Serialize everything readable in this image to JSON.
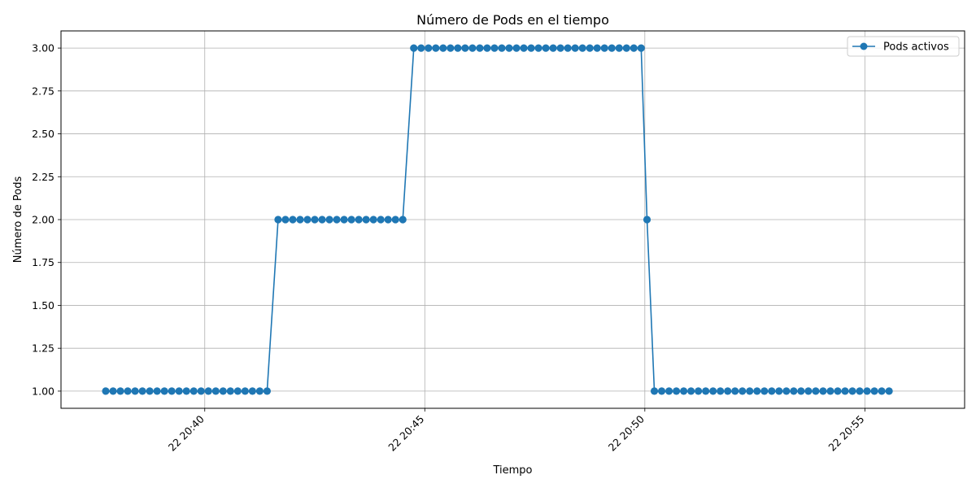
{
  "chart_data": {
    "type": "line",
    "title": "Número de Pods en el tiempo",
    "xlabel": "Tiempo",
    "ylabel": "Número de Pods",
    "x_ticks": [
      {
        "time": "20:40",
        "label": "22 20:40"
      },
      {
        "time": "20:45",
        "label": "22 20:45"
      },
      {
        "time": "20:50",
        "label": "22 20:50"
      },
      {
        "time": "20:55",
        "label": "22 20:55"
      }
    ],
    "y_ticks": [
      "1.00",
      "1.25",
      "1.50",
      "1.75",
      "2.00",
      "2.25",
      "2.50",
      "2.75",
      "3.00"
    ],
    "ylim": [
      0.9,
      3.1
    ],
    "xlim": [
      "20:36:44",
      "20:57:16"
    ],
    "grid": true,
    "legend_position": "top-right",
    "series": [
      {
        "name": "Pods activos",
        "color": "#1f77b4",
        "marker": "circle",
        "points": [
          [
            "20:37:45",
            1
          ],
          [
            "20:37:55",
            1
          ],
          [
            "20:38:05",
            1
          ],
          [
            "20:38:15",
            1
          ],
          [
            "20:38:25",
            1
          ],
          [
            "20:38:35",
            1
          ],
          [
            "20:38:45",
            1
          ],
          [
            "20:38:55",
            1
          ],
          [
            "20:39:05",
            1
          ],
          [
            "20:39:15",
            1
          ],
          [
            "20:39:25",
            1
          ],
          [
            "20:39:35",
            1
          ],
          [
            "20:39:45",
            1
          ],
          [
            "20:39:55",
            1
          ],
          [
            "20:40:05",
            1
          ],
          [
            "20:40:15",
            1
          ],
          [
            "20:40:25",
            1
          ],
          [
            "20:40:35",
            1
          ],
          [
            "20:40:45",
            1
          ],
          [
            "20:40:55",
            1
          ],
          [
            "20:41:05",
            1
          ],
          [
            "20:41:15",
            1
          ],
          [
            "20:41:25",
            1
          ],
          [
            "20:41:40",
            2
          ],
          [
            "20:41:50",
            2
          ],
          [
            "20:42:00",
            2
          ],
          [
            "20:42:10",
            2
          ],
          [
            "20:42:20",
            2
          ],
          [
            "20:42:30",
            2
          ],
          [
            "20:42:40",
            2
          ],
          [
            "20:42:50",
            2
          ],
          [
            "20:43:00",
            2
          ],
          [
            "20:43:10",
            2
          ],
          [
            "20:43:20",
            2
          ],
          [
            "20:43:30",
            2
          ],
          [
            "20:43:40",
            2
          ],
          [
            "20:43:50",
            2
          ],
          [
            "20:44:00",
            2
          ],
          [
            "20:44:10",
            2
          ],
          [
            "20:44:20",
            2
          ],
          [
            "20:44:30",
            2
          ],
          [
            "20:44:45",
            3
          ],
          [
            "20:44:55",
            3
          ],
          [
            "20:45:05",
            3
          ],
          [
            "20:45:15",
            3
          ],
          [
            "20:45:25",
            3
          ],
          [
            "20:45:35",
            3
          ],
          [
            "20:45:45",
            3
          ],
          [
            "20:45:55",
            3
          ],
          [
            "20:46:05",
            3
          ],
          [
            "20:46:15",
            3
          ],
          [
            "20:46:25",
            3
          ],
          [
            "20:46:35",
            3
          ],
          [
            "20:46:45",
            3
          ],
          [
            "20:46:55",
            3
          ],
          [
            "20:47:05",
            3
          ],
          [
            "20:47:15",
            3
          ],
          [
            "20:47:25",
            3
          ],
          [
            "20:47:35",
            3
          ],
          [
            "20:47:45",
            3
          ],
          [
            "20:47:55",
            3
          ],
          [
            "20:48:05",
            3
          ],
          [
            "20:48:15",
            3
          ],
          [
            "20:48:25",
            3
          ],
          [
            "20:48:35",
            3
          ],
          [
            "20:48:45",
            3
          ],
          [
            "20:48:55",
            3
          ],
          [
            "20:49:05",
            3
          ],
          [
            "20:49:15",
            3
          ],
          [
            "20:49:25",
            3
          ],
          [
            "20:49:35",
            3
          ],
          [
            "20:49:45",
            3
          ],
          [
            "20:49:55",
            3
          ],
          [
            "20:50:03",
            2
          ],
          [
            "20:50:13",
            1
          ],
          [
            "20:50:23",
            1
          ],
          [
            "20:50:33",
            1
          ],
          [
            "20:50:43",
            1
          ],
          [
            "20:50:53",
            1
          ],
          [
            "20:51:03",
            1
          ],
          [
            "20:51:13",
            1
          ],
          [
            "20:51:23",
            1
          ],
          [
            "20:51:33",
            1
          ],
          [
            "20:51:43",
            1
          ],
          [
            "20:51:53",
            1
          ],
          [
            "20:52:03",
            1
          ],
          [
            "20:52:13",
            1
          ],
          [
            "20:52:23",
            1
          ],
          [
            "20:52:33",
            1
          ],
          [
            "20:52:43",
            1
          ],
          [
            "20:52:53",
            1
          ],
          [
            "20:53:03",
            1
          ],
          [
            "20:53:13",
            1
          ],
          [
            "20:53:23",
            1
          ],
          [
            "20:53:33",
            1
          ],
          [
            "20:53:43",
            1
          ],
          [
            "20:53:53",
            1
          ],
          [
            "20:54:03",
            1
          ],
          [
            "20:54:13",
            1
          ],
          [
            "20:54:23",
            1
          ],
          [
            "20:54:33",
            1
          ],
          [
            "20:54:43",
            1
          ],
          [
            "20:54:53",
            1
          ],
          [
            "20:55:03",
            1
          ],
          [
            "20:55:13",
            1
          ],
          [
            "20:55:23",
            1
          ],
          [
            "20:55:33",
            1
          ]
        ]
      }
    ]
  }
}
